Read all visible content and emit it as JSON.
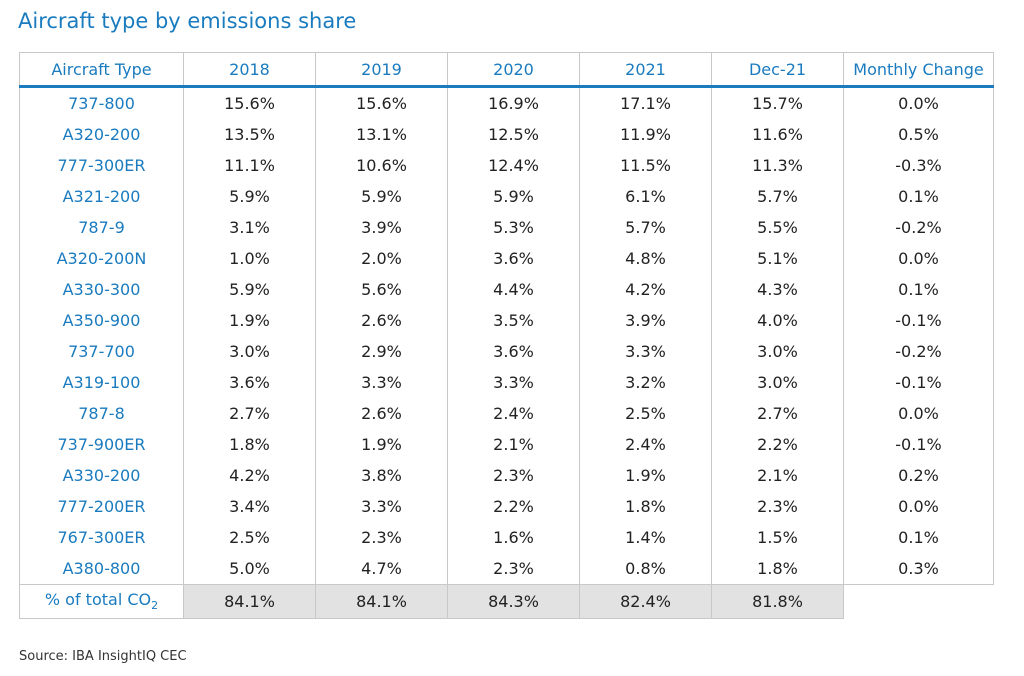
{
  "chart_data": {
    "type": "table",
    "title": "Aircraft type by emissions share",
    "columns": [
      "Aircraft Type",
      "2018",
      "2019",
      "2020",
      "2021",
      "Dec-21",
      "Monthly Change"
    ],
    "rows": [
      [
        "737-800",
        "15.6%",
        "15.6%",
        "16.9%",
        "17.1%",
        "15.7%",
        "0.0%"
      ],
      [
        "A320-200",
        "13.5%",
        "13.1%",
        "12.5%",
        "11.9%",
        "11.6%",
        "0.5%"
      ],
      [
        "777-300ER",
        "11.1%",
        "10.6%",
        "12.4%",
        "11.5%",
        "11.3%",
        "-0.3%"
      ],
      [
        "A321-200",
        "5.9%",
        "5.9%",
        "5.9%",
        "6.1%",
        "5.7%",
        "0.1%"
      ],
      [
        "787-9",
        "3.1%",
        "3.9%",
        "5.3%",
        "5.7%",
        "5.5%",
        "-0.2%"
      ],
      [
        "A320-200N",
        "1.0%",
        "2.0%",
        "3.6%",
        "4.8%",
        "5.1%",
        "0.0%"
      ],
      [
        "A330-300",
        "5.9%",
        "5.6%",
        "4.4%",
        "4.2%",
        "4.3%",
        "0.1%"
      ],
      [
        "A350-900",
        "1.9%",
        "2.6%",
        "3.5%",
        "3.9%",
        "4.0%",
        "-0.1%"
      ],
      [
        "737-700",
        "3.0%",
        "2.9%",
        "3.6%",
        "3.3%",
        "3.0%",
        "-0.2%"
      ],
      [
        "A319-100",
        "3.6%",
        "3.3%",
        "3.3%",
        "3.2%",
        "3.0%",
        "-0.1%"
      ],
      [
        "787-8",
        "2.7%",
        "2.6%",
        "2.4%",
        "2.5%",
        "2.7%",
        "0.0%"
      ],
      [
        "737-900ER",
        "1.8%",
        "1.9%",
        "2.1%",
        "2.4%",
        "2.2%",
        "-0.1%"
      ],
      [
        "A330-200",
        "4.2%",
        "3.8%",
        "2.3%",
        "1.9%",
        "2.1%",
        "0.2%"
      ],
      [
        "777-200ER",
        "3.4%",
        "3.3%",
        "2.2%",
        "1.8%",
        "2.3%",
        "0.0%"
      ],
      [
        "767-300ER",
        "2.5%",
        "2.3%",
        "1.6%",
        "1.4%",
        "1.5%",
        "0.1%"
      ],
      [
        "A380-800",
        "5.0%",
        "4.7%",
        "2.3%",
        "0.8%",
        "1.8%",
        "0.3%"
      ]
    ],
    "total_row": {
      "label": "% of total CO",
      "label_subscript": "2",
      "values": [
        "84.1%",
        "84.1%",
        "84.3%",
        "82.4%",
        "81.8%"
      ]
    },
    "source": "Source: IBA InsightIQ CEC"
  },
  "colors": {
    "accent": "#1a7bbf",
    "total_fill": "#e2e2e2",
    "grid": "#c8c8c8"
  }
}
